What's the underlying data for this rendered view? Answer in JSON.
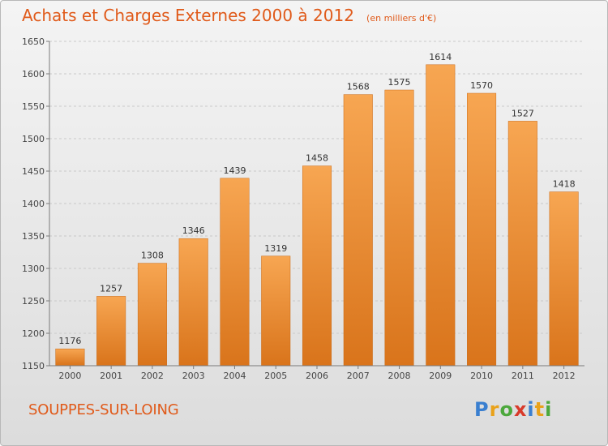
{
  "header": {
    "title": "Achats et Charges Externes 2000 à 2012",
    "subtitle": "(en milliers d'€)"
  },
  "footer": {
    "commune": "SOUPPES-SUR-LOING",
    "logo_letters": [
      "P",
      "r",
      "o",
      "x",
      "i",
      "t",
      "i"
    ],
    "logo_colors": [
      "#3a7fd0",
      "#e9a21b",
      "#4ca83c",
      "#d83a2a",
      "#3a7fd0",
      "#e9a21b",
      "#4ca83c"
    ]
  },
  "colors": {
    "title": "#e05a1a",
    "bar_top": "#f7a652",
    "bar_bottom": "#d9741b",
    "grid": "#c9c9c9",
    "axis": "#7a7a7a"
  },
  "chart_data": {
    "type": "bar",
    "title": "Achats et Charges Externes 2000 à 2012",
    "subtitle": "(en milliers d'€)",
    "categories": [
      "2000",
      "2001",
      "2002",
      "2003",
      "2004",
      "2005",
      "2006",
      "2007",
      "2008",
      "2009",
      "2010",
      "2011",
      "2012"
    ],
    "values": [
      1176,
      1257,
      1308,
      1346,
      1439,
      1319,
      1458,
      1568,
      1575,
      1614,
      1570,
      1527,
      1418
    ],
    "ylim": [
      1150,
      1650
    ],
    "yticks": [
      1150,
      1200,
      1250,
      1300,
      1350,
      1400,
      1450,
      1500,
      1550,
      1600,
      1650
    ],
    "xlabel": "",
    "ylabel": "",
    "grid": true,
    "data_labels": true
  }
}
